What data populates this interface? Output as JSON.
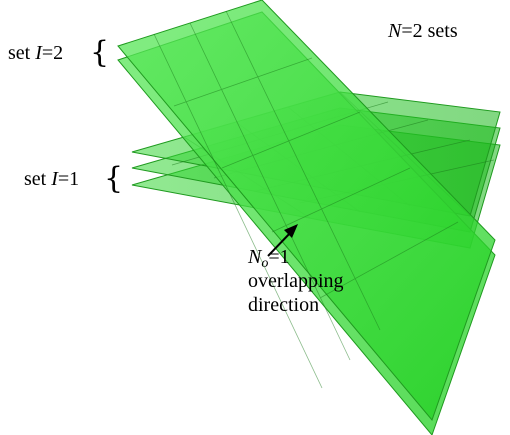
{
  "labels": {
    "sets_count": {
      "var": "N",
      "eq": "=2 sets"
    },
    "set2": {
      "prefix": "set ",
      "var": "I",
      "eq": "=2"
    },
    "set1": {
      "prefix": "set ",
      "var": "I",
      "eq": "=1"
    },
    "overlap": {
      "var": "N",
      "sub": "o",
      "eq": "=1",
      "line2": "overlapping",
      "line3": "direction"
    }
  },
  "colors": {
    "plane_fill": "#2fd12f",
    "plane_stroke": "#1f9a1f",
    "grid": "#1a7a1a",
    "text": "#000000"
  }
}
